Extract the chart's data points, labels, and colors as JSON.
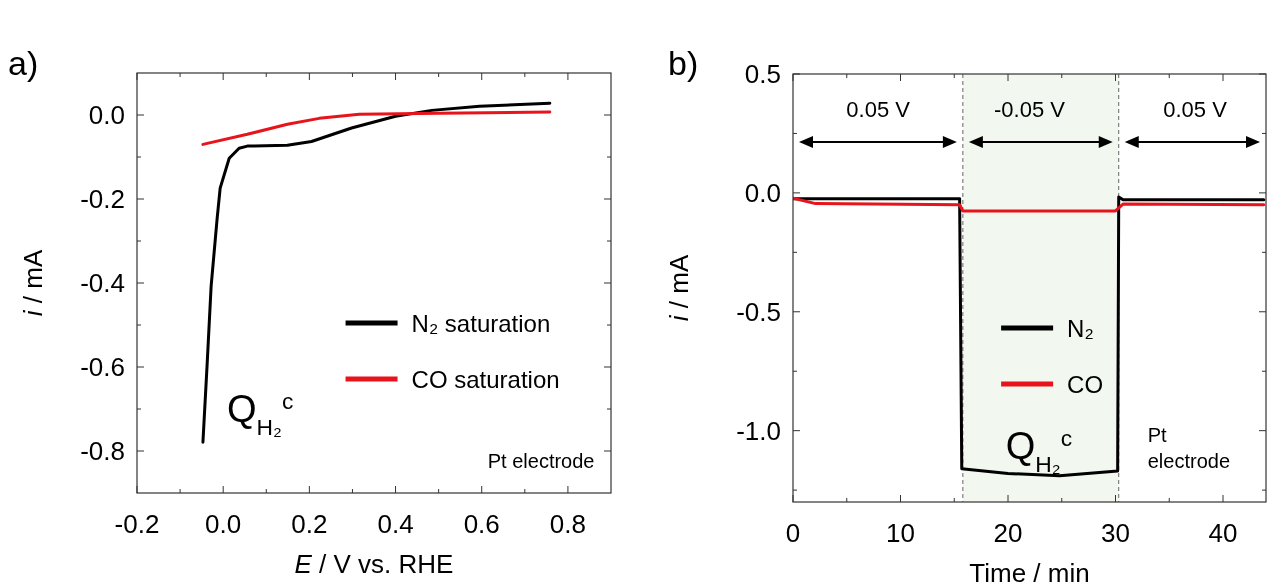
{
  "chart_data": [
    {
      "type": "line",
      "title": "a)",
      "xlabel": "E / V vs. RHE",
      "ylabel": "i / mA",
      "xlim": [
        -0.2,
        0.9
      ],
      "ylim": [
        -0.9,
        0.1
      ],
      "xticks": [
        -0.2,
        {
          "value": -0.1,
          "label": null
        },
        {
          "value": 0,
          "label": "0.0"
        },
        {
          "value": 0.1,
          "label": null
        },
        0.2,
        {
          "value": 0.3,
          "label": null
        },
        0.4,
        {
          "value": 0.5,
          "label": null
        },
        0.6,
        {
          "value": 0.7,
          "label": null
        },
        0.8
      ],
      "yticks": [
        {
          "value": 0,
          "label": "0.0"
        },
        {
          "value": -0.1,
          "label": null
        },
        -0.2,
        {
          "value": -0.3,
          "label": null
        },
        -0.4,
        {
          "value": -0.5,
          "label": null
        },
        -0.6,
        {
          "value": -0.7,
          "label": null
        },
        -0.8
      ],
      "legend": "right",
      "grid": false,
      "series": [
        {
          "name": "N₂ saturation",
          "color": "#000000",
          "x": [
            -0.047,
            -0.037,
            -0.028,
            -0.014,
            -0.007,
            0.014,
            0.037,
            0.056,
            0.149,
            0.205,
            0.298,
            0.4,
            0.484,
            0.595,
            0.758
          ],
          "values": [
            -0.779,
            -0.589,
            -0.408,
            -0.246,
            -0.174,
            -0.103,
            -0.079,
            -0.074,
            -0.072,
            -0.063,
            -0.031,
            -0.003,
            0.011,
            0.021,
            0.028
          ]
        },
        {
          "name": "CO saturation",
          "color": "#e8141b",
          "x": [
            -0.047,
            0.056,
            0.149,
            0.223,
            0.316,
            0.502,
            0.758
          ],
          "values": [
            -0.07,
            -0.046,
            -0.022,
            -0.008,
            0.002,
            0.004,
            0.007
          ]
        }
      ],
      "annotations": [
        "Q$_{H₂}$$^{c}$",
        "Pt electrode"
      ]
    },
    {
      "type": "line",
      "title": "b)",
      "xlabel": "Time / min",
      "ylabel": "i / mA",
      "xlim": [
        0,
        44
      ],
      "ylim": [
        -1.3,
        0.5
      ],
      "xticks": [
        0,
        {
          "value": 5,
          "label": null
        },
        10,
        {
          "value": 15,
          "label": null
        },
        20,
        {
          "value": 25,
          "label": null
        },
        30,
        {
          "value": 35,
          "label": null
        },
        40
      ],
      "yticks": [
        0.5,
        {
          "value": 0.25,
          "label": null
        },
        {
          "value": 0,
          "label": "0.0"
        },
        {
          "value": -0.25,
          "label": null
        },
        -0.5,
        {
          "value": -0.75,
          "label": null
        },
        {
          "value": -1,
          "label": "-1.0"
        },
        {
          "value": -1.25,
          "label": null
        }
      ],
      "legend": "right",
      "grid": false,
      "bands": [
        {
          "axis": "x",
          "from": 15.8,
          "to": 30.3,
          "color": "#f2f7ef"
        }
      ],
      "ref_lines": [
        {
          "axis": "x",
          "value": 15.8,
          "color": "#666666",
          "line_style": "dashed"
        },
        {
          "axis": "x",
          "value": 30.3,
          "color": "#666666",
          "line_style": "dashed"
        }
      ],
      "series": [
        {
          "name": "N₂",
          "color": "#000000",
          "x": [
            0,
            1.7,
            15.5,
            15.7,
            20,
            24.8,
            30.2,
            30.3,
            30.7,
            43.8
          ],
          "values": [
            -0.025,
            -0.025,
            -0.025,
            -1.16,
            -1.18,
            -1.19,
            -1.17,
            -0.017,
            -0.029,
            -0.029
          ]
        },
        {
          "name": "CO",
          "color": "#e8141b",
          "x": [
            0,
            2.1,
            15.5,
            15.8,
            30,
            30.7,
            43.8
          ],
          "values": [
            -0.022,
            -0.045,
            -0.05,
            -0.076,
            -0.076,
            -0.047,
            -0.05
          ]
        }
      ],
      "annotations": [
        "0.05 V",
        "-0.05 V",
        "0.05 V",
        "Q$_{H₂}$$^{c}$",
        "Pt electrode"
      ]
    }
  ]
}
